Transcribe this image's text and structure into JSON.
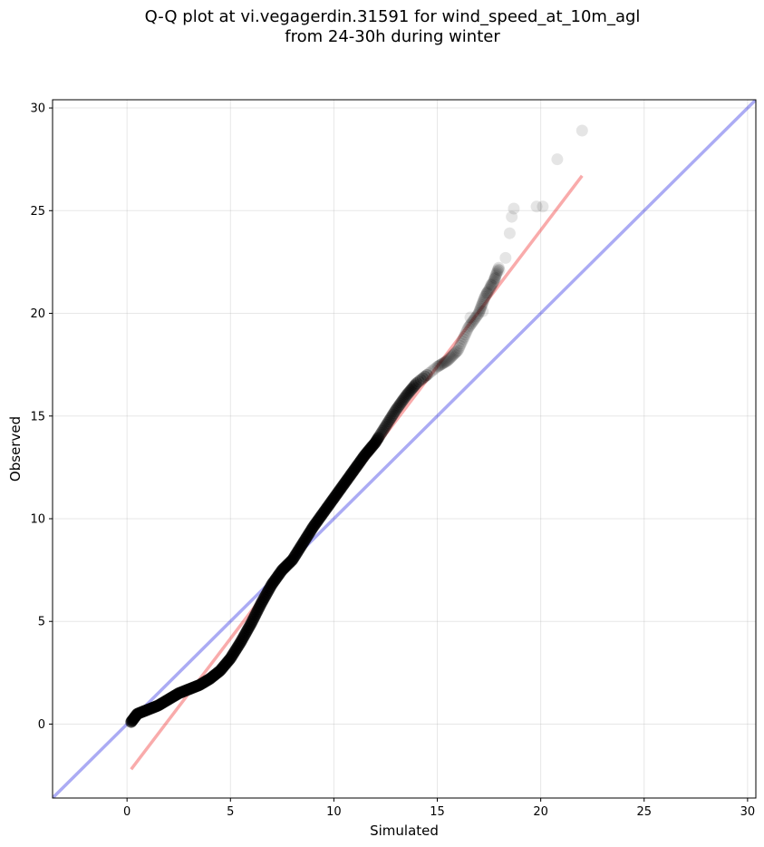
{
  "chart_data": {
    "type": "scatter",
    "title_lines": [
      "Q-Q plot at vi.vegagerdin.31591 for wind_speed_at_10m_agl",
      "from 24-30h during winter"
    ],
    "xlabel": "Simulated",
    "ylabel": "Observed",
    "xlim": [
      -3.6,
      30.4
    ],
    "ylim": [
      -3.6,
      30.4
    ],
    "x_ticks": [
      0,
      5,
      10,
      15,
      20,
      25,
      30
    ],
    "y_ticks": [
      0,
      5,
      10,
      15,
      20,
      25,
      30
    ],
    "grid": true,
    "colors": {
      "points": "#000000",
      "identity_line": "#0000dd",
      "fit_line": "#ee0000",
      "grid": "#b0b0b0"
    },
    "curve_knots": [
      [
        0.2,
        0.1
      ],
      [
        0.5,
        0.5
      ],
      [
        1.0,
        0.7
      ],
      [
        1.5,
        0.9
      ],
      [
        2.0,
        1.2
      ],
      [
        2.5,
        1.5
      ],
      [
        3.0,
        1.7
      ],
      [
        3.5,
        1.9
      ],
      [
        4.0,
        2.2
      ],
      [
        4.5,
        2.6
      ],
      [
        5.0,
        3.2
      ],
      [
        5.5,
        4.0
      ],
      [
        6.0,
        4.9
      ],
      [
        6.5,
        5.9
      ],
      [
        7.0,
        6.8
      ],
      [
        7.5,
        7.5
      ],
      [
        8.0,
        8.0
      ],
      [
        8.5,
        8.8
      ],
      [
        9.0,
        9.6
      ],
      [
        9.5,
        10.3
      ],
      [
        10.0,
        11.0
      ],
      [
        10.5,
        11.7
      ],
      [
        11.0,
        12.4
      ],
      [
        11.5,
        13.1
      ],
      [
        12.0,
        13.7
      ],
      [
        12.5,
        14.5
      ],
      [
        13.0,
        15.3
      ],
      [
        13.5,
        16.0
      ],
      [
        14.0,
        16.6
      ],
      [
        15.0,
        17.4
      ],
      [
        15.5,
        17.7
      ],
      [
        16.0,
        18.2
      ],
      [
        16.5,
        19.3
      ],
      [
        17.0,
        20.0
      ],
      [
        17.3,
        20.8
      ],
      [
        17.7,
        21.5
      ],
      [
        18.0,
        22.3
      ]
    ],
    "upper_tail": [
      [
        16.6,
        19.8
      ],
      [
        17.2,
        20.1
      ],
      [
        17.4,
        21.0
      ],
      [
        17.6,
        21.4
      ],
      [
        17.8,
        21.7
      ],
      [
        18.0,
        22.1
      ],
      [
        18.3,
        22.7
      ],
      [
        18.5,
        23.9
      ],
      [
        18.6,
        24.7
      ],
      [
        18.7,
        25.1
      ],
      [
        19.8,
        25.2
      ],
      [
        20.1,
        25.2
      ],
      [
        20.8,
        27.5
      ],
      [
        22.0,
        28.9
      ]
    ],
    "identity_line": [
      [
        -3.6,
        -3.6
      ],
      [
        30.4,
        30.4
      ]
    ],
    "fit_line": [
      [
        0.2,
        -2.2
      ],
      [
        22.0,
        26.7
      ]
    ]
  }
}
